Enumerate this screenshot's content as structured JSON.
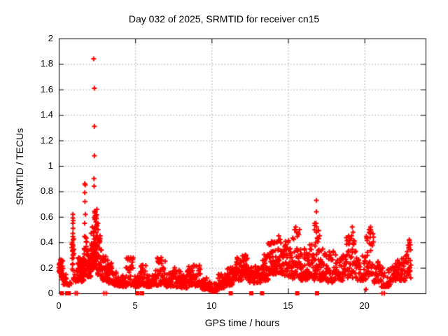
{
  "chart_data": {
    "type": "scatter",
    "title": "Day 032 of 2025, SRMTID for receiver cn15",
    "xlabel": "GPS time / hours",
    "ylabel": "SRMTID / TECUs",
    "xlim": [
      0,
      24
    ],
    "ylim": [
      0,
      2
    ],
    "grid": "dotted, both axes",
    "legend": "none",
    "marker": "plus",
    "marker_color": "#ff0000",
    "grid_color": "#9a9a9a",
    "frame_color": "#000000",
    "background_color": "#ffffff",
    "xtick_values": [
      0,
      5,
      10,
      15,
      20
    ],
    "xtick_labels": [
      "0",
      "5",
      "10",
      "15",
      "20"
    ],
    "ytick_values": [
      0,
      0.2,
      0.4,
      0.6,
      0.8,
      1,
      1.2,
      1.4,
      1.6,
      1.8,
      2
    ],
    "ytick_labels": [
      "0",
      "0.2",
      "0.4",
      "0.6",
      "0.8",
      "1",
      "1.2",
      "1.4",
      "1.6",
      "1.8",
      "2"
    ],
    "outlier_points": [
      [
        2.28,
        1.84
      ],
      [
        2.33,
        1.61
      ],
      [
        2.33,
        1.31
      ],
      [
        2.33,
        1.08
      ],
      [
        2.3,
        0.9
      ],
      [
        2.31,
        0.84
      ],
      [
        1.7,
        0.86
      ],
      [
        1.73,
        0.85
      ],
      [
        1.7,
        0.79
      ],
      [
        1.71,
        0.72
      ],
      [
        1.74,
        0.62
      ],
      [
        1.69,
        0.55
      ],
      [
        0.92,
        0.62
      ],
      [
        0.92,
        0.59
      ],
      [
        0.94,
        0.57
      ],
      [
        0.92,
        0.55
      ],
      [
        0.93,
        0.51
      ],
      [
        0.92,
        0.47
      ],
      [
        0.93,
        0.42
      ],
      [
        0.92,
        0.38
      ],
      [
        0.93,
        0.34
      ],
      [
        0.92,
        0.3
      ],
      [
        2.35,
        0.63
      ],
      [
        2.38,
        0.61
      ],
      [
        2.4,
        0.64
      ],
      [
        2.42,
        0.6
      ],
      [
        2.36,
        0.58
      ],
      [
        2.56,
        0.55
      ],
      [
        2.57,
        0.5
      ],
      [
        16.85,
        0.73
      ],
      [
        16.85,
        0.64
      ],
      [
        16.83,
        0.55
      ],
      [
        16.87,
        0.52
      ],
      [
        16.85,
        0.48
      ],
      [
        19.2,
        0.52
      ],
      [
        19.25,
        0.48
      ],
      [
        19.15,
        0.45
      ],
      [
        20.4,
        0.52
      ],
      [
        20.42,
        0.48
      ],
      [
        20.38,
        0.44
      ],
      [
        15.5,
        0.52
      ],
      [
        15.55,
        0.48
      ],
      [
        15.75,
        0.5
      ],
      [
        15.7,
        0.46
      ],
      [
        12.2,
        0.3
      ],
      [
        12.15,
        0.28
      ],
      [
        6.7,
        0.28
      ],
      [
        6.65,
        0.26
      ],
      [
        4.7,
        0.28
      ],
      [
        8.5,
        0.21
      ],
      [
        9.2,
        0.22
      ],
      [
        5.5,
        0.22
      ],
      [
        20.1,
        0.03
      ],
      [
        22.95,
        0.4
      ],
      [
        23.0,
        0.38
      ],
      [
        22.9,
        0.36
      ]
    ],
    "band_envelope_bins_x0_x1_ymin_ymax_count": [
      [
        0.0,
        0.12,
        0.16,
        0.29,
        16
      ],
      [
        0.12,
        0.3,
        0.1,
        0.26,
        22
      ],
      [
        0.3,
        0.5,
        0.07,
        0.16,
        12
      ],
      [
        0.5,
        0.85,
        0.06,
        0.12,
        6
      ],
      [
        0.85,
        1.0,
        0.1,
        0.45,
        18
      ],
      [
        1.0,
        1.25,
        0.07,
        0.18,
        10
      ],
      [
        1.25,
        1.65,
        0.09,
        0.28,
        45
      ],
      [
        1.65,
        1.85,
        0.14,
        0.45,
        26
      ],
      [
        1.85,
        2.1,
        0.13,
        0.35,
        32
      ],
      [
        2.1,
        2.3,
        0.17,
        0.55,
        32
      ],
      [
        2.3,
        2.5,
        0.2,
        0.66,
        38
      ],
      [
        2.5,
        2.8,
        0.14,
        0.45,
        32
      ],
      [
        2.8,
        3.1,
        0.1,
        0.3,
        26
      ],
      [
        3.1,
        3.5,
        0.08,
        0.26,
        32
      ],
      [
        3.5,
        3.9,
        0.06,
        0.17,
        30
      ],
      [
        3.9,
        4.4,
        0.05,
        0.14,
        32
      ],
      [
        4.4,
        4.9,
        0.06,
        0.28,
        32
      ],
      [
        4.9,
        5.3,
        0.05,
        0.14,
        26
      ],
      [
        5.3,
        5.7,
        0.06,
        0.22,
        28
      ],
      [
        5.7,
        6.3,
        0.05,
        0.15,
        38
      ],
      [
        6.3,
        7.0,
        0.06,
        0.28,
        44
      ],
      [
        7.0,
        7.5,
        0.05,
        0.16,
        32
      ],
      [
        7.5,
        8.0,
        0.05,
        0.2,
        34
      ],
      [
        8.0,
        8.4,
        0.04,
        0.15,
        28
      ],
      [
        8.4,
        8.8,
        0.06,
        0.21,
        30
      ],
      [
        8.8,
        9.3,
        0.05,
        0.22,
        32
      ],
      [
        9.3,
        9.8,
        0.03,
        0.12,
        32
      ],
      [
        9.8,
        10.4,
        0.015,
        0.09,
        38
      ],
      [
        10.4,
        11.0,
        0.04,
        0.15,
        38
      ],
      [
        11.0,
        11.5,
        0.06,
        0.2,
        32
      ],
      [
        11.5,
        12.0,
        0.1,
        0.28,
        38
      ],
      [
        12.0,
        12.4,
        0.12,
        0.31,
        32
      ],
      [
        12.4,
        12.9,
        0.08,
        0.22,
        32
      ],
      [
        12.9,
        13.3,
        0.08,
        0.2,
        26
      ],
      [
        13.3,
        13.7,
        0.1,
        0.32,
        32
      ],
      [
        13.7,
        14.2,
        0.15,
        0.42,
        38
      ],
      [
        14.2,
        14.7,
        0.15,
        0.45,
        38
      ],
      [
        14.7,
        15.2,
        0.12,
        0.42,
        38
      ],
      [
        15.2,
        15.8,
        0.1,
        0.5,
        44
      ],
      [
        15.8,
        16.3,
        0.1,
        0.35,
        32
      ],
      [
        16.3,
        16.7,
        0.12,
        0.4,
        30
      ],
      [
        16.7,
        17.1,
        0.1,
        0.55,
        32
      ],
      [
        17.1,
        17.6,
        0.1,
        0.35,
        34
      ],
      [
        17.6,
        18.2,
        0.08,
        0.33,
        38
      ],
      [
        18.2,
        18.8,
        0.1,
        0.3,
        34
      ],
      [
        18.8,
        19.5,
        0.12,
        0.45,
        42
      ],
      [
        19.5,
        20.1,
        0.1,
        0.3,
        32
      ],
      [
        20.1,
        20.6,
        0.12,
        0.5,
        32
      ],
      [
        20.6,
        21.1,
        0.08,
        0.25,
        30
      ],
      [
        21.1,
        21.7,
        0.05,
        0.2,
        28
      ],
      [
        21.7,
        22.3,
        0.1,
        0.26,
        32
      ],
      [
        22.3,
        22.75,
        0.1,
        0.32,
        26
      ],
      [
        22.75,
        23.05,
        0.12,
        0.42,
        22
      ]
    ],
    "zero_line_square_markers_hours": [
      0.2,
      0.55,
      0.65,
      5.15,
      5.45,
      11.25,
      12.6,
      13.3,
      15.6,
      16.9
    ],
    "zero_line_plus_markers_hours": [
      1.08,
      1.2,
      2.95,
      3.1,
      21.15,
      21.3
    ]
  }
}
